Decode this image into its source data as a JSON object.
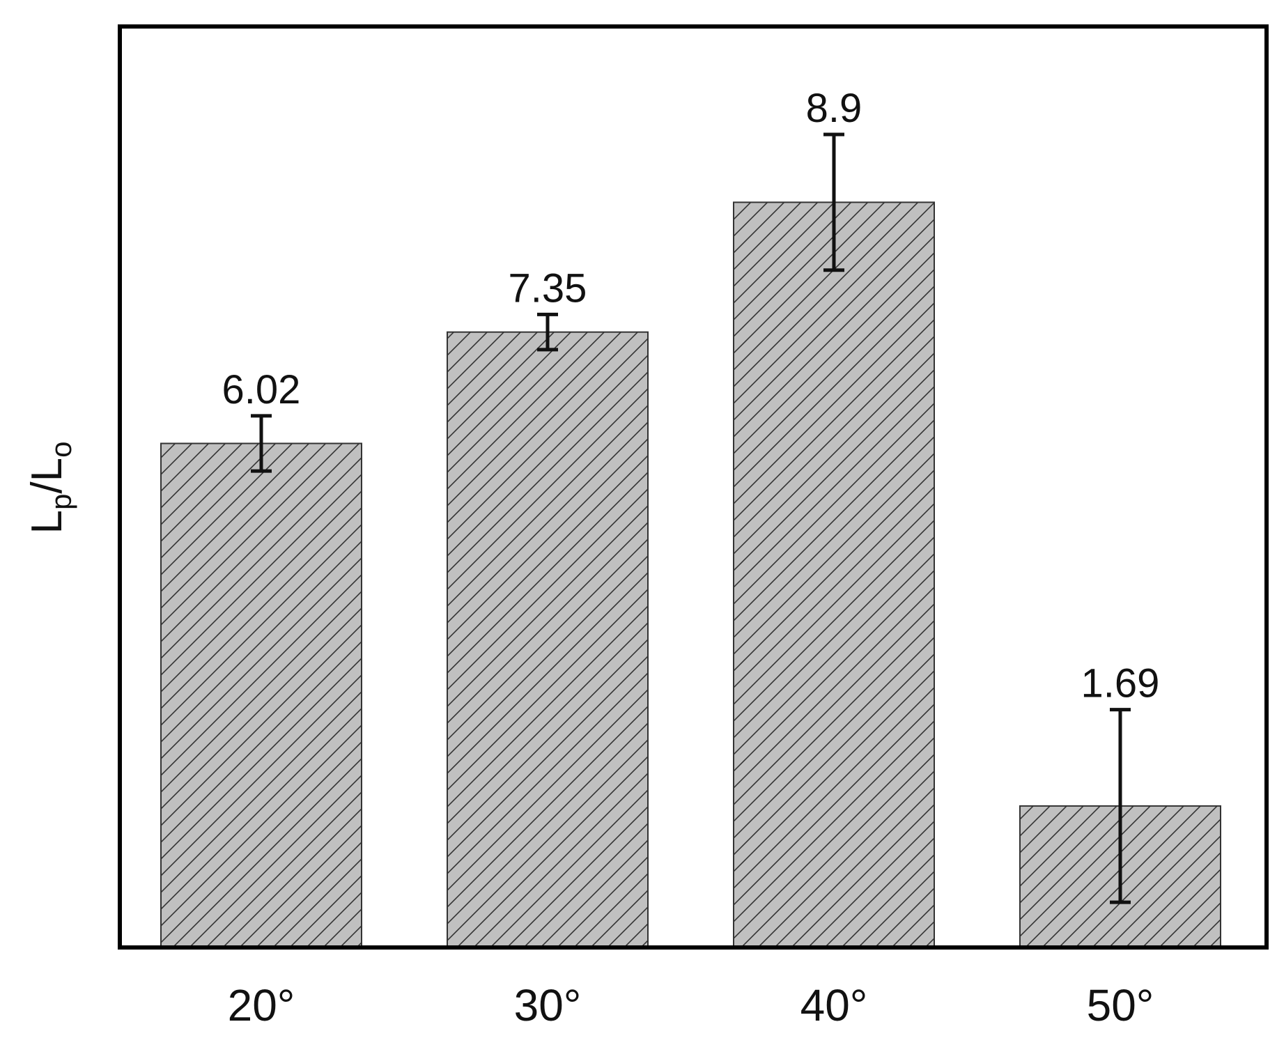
{
  "chart_data": {
    "type": "bar",
    "title": "",
    "xlabel": "",
    "ylabel": {
      "main": "L",
      "sub1": "p",
      "slash": "/",
      "main2": "L",
      "sub2": "o"
    },
    "categories": [
      "20°",
      "30°",
      "40°",
      "50°"
    ],
    "values": [
      6.02,
      7.35,
      8.9,
      1.69
    ],
    "data_labels": [
      "6.02",
      "7.35",
      "8.9",
      "1.69"
    ],
    "error_low": [
      0.33,
      0.21,
      0.81,
      1.15
    ],
    "error_high": [
      0.33,
      0.21,
      0.81,
      1.15
    ],
    "ylim": [
      0,
      11
    ],
    "y_ticks_shown": false,
    "grid": false,
    "legend": "none",
    "bar_fill": "#c0c0c0",
    "bar_hatch": "diagonal",
    "hatch_color": "#333333",
    "bar_edge": "#333333",
    "error_bar_color": "#111111",
    "frame_color": "#000000"
  }
}
